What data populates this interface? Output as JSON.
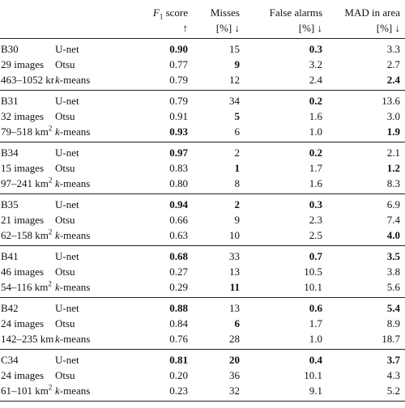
{
  "header": {
    "f1": {
      "symbol": "F",
      "sub": "1",
      "rest": " score",
      "arrow": "↑"
    },
    "misses": {
      "line1": "Misses",
      "line2": "[%] ↓"
    },
    "false_alarms": {
      "line1": "False alarms",
      "line2": "[%] ↓"
    },
    "mad": {
      "line1": "MAD in area",
      "line2": "[%] ↓"
    }
  },
  "groups": [
    {
      "id": "B30",
      "images": "29 images",
      "area": "463–1052 km",
      "area_sup": "2",
      "rows": [
        {
          "method": "U-net",
          "k": "",
          "method_rest": "",
          "f1": "0.90",
          "f1_bold": true,
          "misses": "15",
          "misses_bold": false,
          "fa": "0.3",
          "fa_bold": true,
          "mad": "3.3",
          "mad_bold": false
        },
        {
          "method": "Otsu",
          "k": "",
          "method_rest": "",
          "f1": "0.77",
          "f1_bold": false,
          "misses": "9",
          "misses_bold": true,
          "fa": "3.2",
          "fa_bold": false,
          "mad": "2.7",
          "mad_bold": false
        },
        {
          "method": "",
          "k": "k",
          "method_rest": "-means",
          "f1": "0.79",
          "f1_bold": false,
          "misses": "12",
          "misses_bold": false,
          "fa": "2.4",
          "fa_bold": false,
          "mad": "2.4",
          "mad_bold": true
        }
      ]
    },
    {
      "id": "B31",
      "images": "32 images",
      "area": "79–518 km",
      "area_sup": "2",
      "rows": [
        {
          "method": "U-net",
          "k": "",
          "method_rest": "",
          "f1": "0.79",
          "f1_bold": false,
          "misses": "34",
          "misses_bold": false,
          "fa": "0.2",
          "fa_bold": true,
          "mad": "13.6",
          "mad_bold": false
        },
        {
          "method": "Otsu",
          "k": "",
          "method_rest": "",
          "f1": "0.91",
          "f1_bold": false,
          "misses": "5",
          "misses_bold": true,
          "fa": "1.6",
          "fa_bold": false,
          "mad": "3.0",
          "mad_bold": false
        },
        {
          "method": "",
          "k": "k",
          "method_rest": "-means",
          "f1": "0.93",
          "f1_bold": true,
          "misses": "6",
          "misses_bold": false,
          "fa": "1.0",
          "fa_bold": false,
          "mad": "1.9",
          "mad_bold": true
        }
      ]
    },
    {
      "id": "B34",
      "images": "15 images",
      "area": "97–241 km",
      "area_sup": "2",
      "rows": [
        {
          "method": "U-net",
          "k": "",
          "method_rest": "",
          "f1": "0.97",
          "f1_bold": true,
          "misses": "2",
          "misses_bold": false,
          "fa": "0.2",
          "fa_bold": true,
          "mad": "2.1",
          "mad_bold": false
        },
        {
          "method": "Otsu",
          "k": "",
          "method_rest": "",
          "f1": "0.83",
          "f1_bold": false,
          "misses": "1",
          "misses_bold": true,
          "fa": "1.7",
          "fa_bold": false,
          "mad": "1.2",
          "mad_bold": true
        },
        {
          "method": "",
          "k": "k",
          "method_rest": "-means",
          "f1": "0.80",
          "f1_bold": false,
          "misses": "8",
          "misses_bold": false,
          "fa": "1.6",
          "fa_bold": false,
          "mad": "8.3",
          "mad_bold": false
        }
      ]
    },
    {
      "id": "B35",
      "images": "21 images",
      "area": "62–158 km",
      "area_sup": "2",
      "rows": [
        {
          "method": "U-net",
          "k": "",
          "method_rest": "",
          "f1": "0.94",
          "f1_bold": true,
          "misses": "2",
          "misses_bold": true,
          "fa": "0.3",
          "fa_bold": true,
          "mad": "6.9",
          "mad_bold": false
        },
        {
          "method": "Otsu",
          "k": "",
          "method_rest": "",
          "f1": "0.66",
          "f1_bold": false,
          "misses": "9",
          "misses_bold": false,
          "fa": "2.3",
          "fa_bold": false,
          "mad": "7.4",
          "mad_bold": false
        },
        {
          "method": "",
          "k": "k",
          "method_rest": "-means",
          "f1": "0.63",
          "f1_bold": false,
          "misses": "10",
          "misses_bold": false,
          "fa": "2.5",
          "fa_bold": false,
          "mad": "4.0",
          "mad_bold": true
        }
      ]
    },
    {
      "id": "B41",
      "images": "46 images",
      "area": "54–116 km",
      "area_sup": "2",
      "rows": [
        {
          "method": "U-net",
          "k": "",
          "method_rest": "",
          "f1": "0.68",
          "f1_bold": true,
          "misses": "33",
          "misses_bold": false,
          "fa": "0.7",
          "fa_bold": true,
          "mad": "3.5",
          "mad_bold": true
        },
        {
          "method": "Otsu",
          "k": "",
          "method_rest": "",
          "f1": "0.27",
          "f1_bold": false,
          "misses": "13",
          "misses_bold": false,
          "fa": "10.5",
          "fa_bold": false,
          "mad": "3.8",
          "mad_bold": false
        },
        {
          "method": "",
          "k": "k",
          "method_rest": "-means",
          "f1": "0.29",
          "f1_bold": false,
          "misses": "11",
          "misses_bold": true,
          "fa": "10.1",
          "fa_bold": false,
          "mad": "5.6",
          "mad_bold": false
        }
      ]
    },
    {
      "id": "B42",
      "images": "24 images",
      "area": "142–235 km",
      "area_sup": "2",
      "rows": [
        {
          "method": "U-net",
          "k": "",
          "method_rest": "",
          "f1": "0.88",
          "f1_bold": true,
          "misses": "13",
          "misses_bold": false,
          "fa": "0.6",
          "fa_bold": true,
          "mad": "5.4",
          "mad_bold": true
        },
        {
          "method": "Otsu",
          "k": "",
          "method_rest": "",
          "f1": "0.84",
          "f1_bold": false,
          "misses": "6",
          "misses_bold": true,
          "fa": "1.7",
          "fa_bold": false,
          "mad": "8.9",
          "mad_bold": false
        },
        {
          "method": "",
          "k": "k",
          "method_rest": "-means",
          "f1": "0.76",
          "f1_bold": false,
          "misses": "28",
          "misses_bold": false,
          "fa": "1.0",
          "fa_bold": false,
          "mad": "18.7",
          "mad_bold": false
        }
      ]
    },
    {
      "id": "C34",
      "images": "24 images",
      "area": "61–101 km",
      "area_sup": "2",
      "rows": [
        {
          "method": "U-net",
          "k": "",
          "method_rest": "",
          "f1": "0.81",
          "f1_bold": true,
          "misses": "20",
          "misses_bold": true,
          "fa": "0.4",
          "fa_bold": true,
          "mad": "3.7",
          "mad_bold": true
        },
        {
          "method": "Otsu",
          "k": "",
          "method_rest": "",
          "f1": "0.20",
          "f1_bold": false,
          "misses": "36",
          "misses_bold": false,
          "fa": "10.1",
          "fa_bold": false,
          "mad": "4.3",
          "mad_bold": false
        },
        {
          "method": "",
          "k": "k",
          "method_rest": "-means",
          "f1": "0.23",
          "f1_bold": false,
          "misses": "32",
          "misses_bold": false,
          "fa": "9.1",
          "fa_bold": false,
          "mad": "5.2",
          "mad_bold": false
        }
      ]
    }
  ]
}
